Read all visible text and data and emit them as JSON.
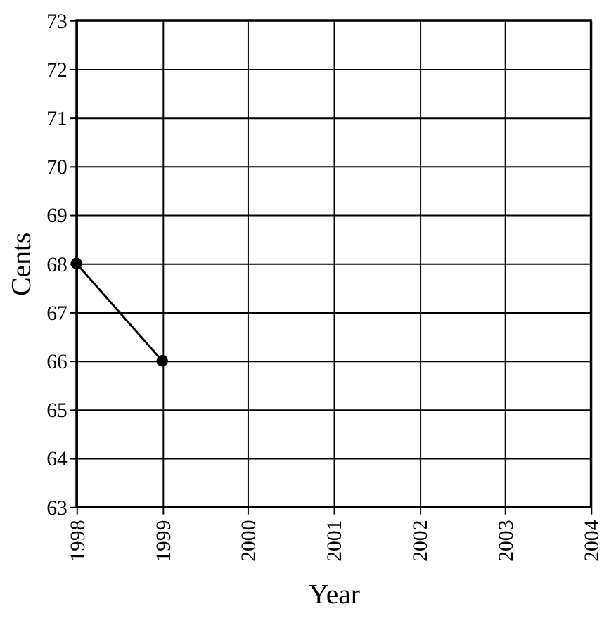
{
  "chart_data": {
    "type": "line",
    "xlabel": "Year",
    "ylabel": "Cents",
    "x": [
      1998,
      1999
    ],
    "series": [
      {
        "color": "#000000",
        "values": [
          68,
          66
        ]
      }
    ],
    "xlim": [
      1998,
      2004
    ],
    "xticks": [
      1998,
      1999,
      2000,
      2001,
      2002,
      2003,
      2004
    ],
    "ylim": [
      63,
      73
    ],
    "yticks": [
      63,
      64,
      65,
      66,
      67,
      68,
      69,
      70,
      71,
      72,
      73
    ],
    "grid": true,
    "marker": "circle",
    "line_style": "solid"
  }
}
